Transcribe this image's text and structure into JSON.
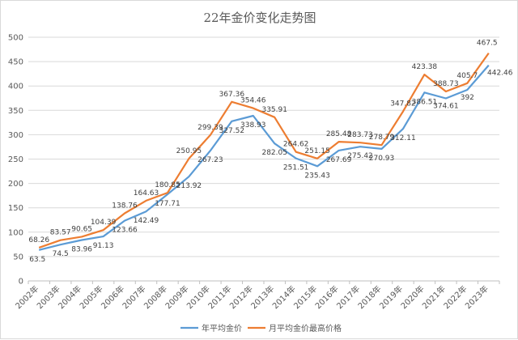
{
  "chart_data": {
    "type": "line",
    "title": "22年金价变化走势图",
    "xlabel": "",
    "ylabel": "",
    "ylim": [
      0,
      500
    ],
    "yticks": [
      0,
      50,
      100,
      150,
      200,
      250,
      300,
      350,
      400,
      450,
      500
    ],
    "grid": true,
    "legend_position": "bottom",
    "categories": [
      "2002年",
      "2003年",
      "2004年",
      "2005年",
      "2006年",
      "2007年",
      "2008年",
      "2009年",
      "2010年",
      "2011年",
      "2012年",
      "2013年",
      "2014年",
      "2015年",
      "2016年",
      "2017年",
      "2018年",
      "2019年",
      "2020年",
      "2021年",
      "2022年",
      "2023年"
    ],
    "series": [
      {
        "name": "年平均金价",
        "color": "#5b9bd5",
        "values": [
          63.5,
          74.5,
          83.96,
          91.13,
          123.66,
          142.49,
          177.71,
          213.92,
          267.23,
          327.52,
          338.93,
          282.05,
          251.51,
          235.43,
          267.69,
          275.42,
          270.93,
          312.11,
          386.51,
          374.61,
          392,
          442.46
        ],
        "labels": [
          "63.5",
          "74.5",
          "83.96",
          "91.13",
          "123.66",
          "142.49",
          "177.71",
          "213.92",
          "267.23",
          "327.52",
          "338.93",
          "282.05",
          "251.51",
          "235.43",
          "267.69",
          "275.42",
          "270.93",
          "312.11",
          "386.51",
          "374.61",
          "392",
          "442.46"
        ]
      },
      {
        "name": "月平均金价最高价格",
        "color": "#ed7d31",
        "values": [
          68.26,
          83.57,
          90.65,
          104.39,
          138.76,
          164.63,
          180.85,
          250.95,
          299.39,
          367.36,
          354.46,
          335.91,
          264.62,
          251.15,
          285.48,
          283.73,
          278.79,
          347.82,
          423.38,
          388.73,
          405.7,
          467.5
        ],
        "labels": [
          "68.26",
          "83.57",
          "90.65",
          "104.39",
          "138.76",
          "164.63",
          "180.85",
          "250.95",
          "299.39",
          "367.36",
          "354.46",
          "335.91",
          "264.62",
          "251.15",
          "285.48",
          "283.73",
          "278.79",
          "347.82",
          "423.38",
          "388.73",
          "405.7",
          "467.5"
        ]
      }
    ]
  }
}
